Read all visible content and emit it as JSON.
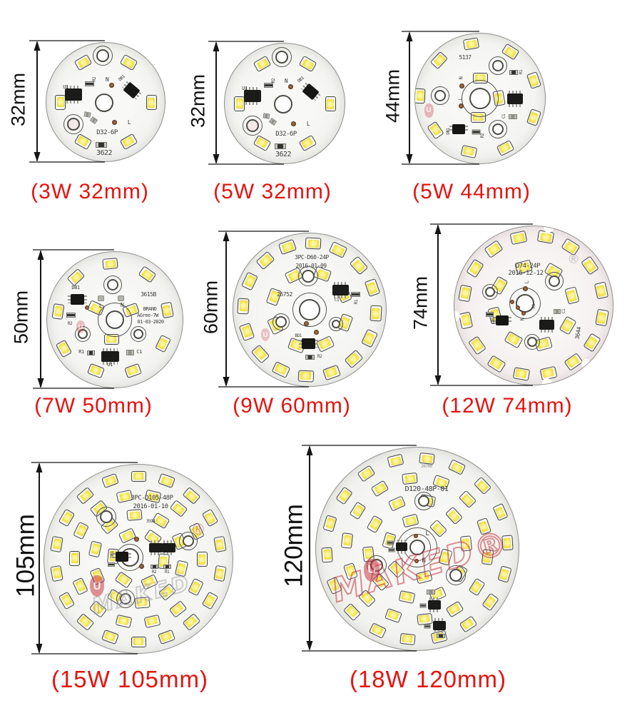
{
  "watermark": {
    "name": "MAKED",
    "name_reg": "MAKED®",
    "u": "U",
    "reg": "®"
  },
  "boards": [
    {
      "caption": "(3W 32mm)",
      "dimension": "32mm",
      "silkscreen": {
        "u1": "U1",
        "r2": "R2",
        "n": "N",
        "db1": "DB1",
        "l": "L",
        "model": "D32-6P",
        "batch": "3622"
      }
    },
    {
      "caption": "(5W 32mm)",
      "dimension": "32mm",
      "silkscreen": {
        "u1": "U1",
        "r2": "R2",
        "n": "N",
        "db1": "DB1",
        "l": "L",
        "model": "D32-6P",
        "batch": "3622"
      }
    },
    {
      "caption": "(5W 44mm)",
      "dimension": "44mm",
      "silkscreen": {
        "code": "5137",
        "r1": "R1",
        "c1": "C1",
        "r2": "R2",
        "db1": "DB1",
        "n": "N",
        "l": "L"
      }
    },
    {
      "caption": "(7W 50mm)",
      "dimension": "50mm",
      "silkscreen": {
        "db1": "DB1",
        "r2": "R2",
        "l": "L",
        "n": "N",
        "code": "3615B",
        "brand": "BRANO",
        "model": "AGree-7W",
        "date": "01-03-2020",
        "r1": "R1",
        "u1": "U1",
        "c1": "C1"
      }
    },
    {
      "caption": "(9W 60mm)",
      "dimension": "60mm",
      "silkscreen": {
        "model": "3PC-D60-24P",
        "date": "2016-01-09",
        "code": "26752",
        "c1": "C1",
        "r1": "R1",
        "bd1": "BD1",
        "r2": "R2"
      }
    },
    {
      "caption": "(12W 74mm)",
      "dimension": "74mm",
      "silkscreen": {
        "model": "D74-24P",
        "date": "2016-12-12",
        "code": "3644",
        "l": "L",
        "n": "N",
        "r1": "R1",
        "c1": "C1",
        "db1": "DB1"
      }
    },
    {
      "caption": "(15W 105mm)",
      "dimension": "105mm",
      "silkscreen": {
        "model": "3PC-D105-48P",
        "date": "2016-01-10",
        "code": "3594",
        "db1": "DB1",
        "r2": "R2",
        "r1": "R1"
      }
    },
    {
      "caption": "(18W 120mm)",
      "dimension": "120mm",
      "silkscreen": {
        "code": "26700",
        "model": "D120-48P-01",
        "l": "L",
        "n": "N"
      }
    }
  ]
}
